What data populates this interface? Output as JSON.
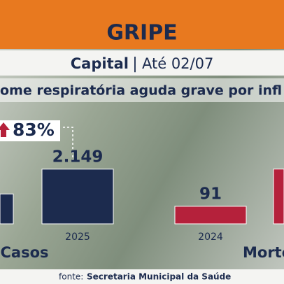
{
  "header": {
    "title": "GRIPE",
    "region": "Capital",
    "separator": "|",
    "period": "Até 02/07"
  },
  "subtitle": "ome respiratória aguda grave por infl",
  "source": {
    "prefix": "fonte:",
    "name": "Secretaria Municipal da Saúde"
  },
  "chart_data": [
    {
      "type": "bar",
      "title": "Casos",
      "annotation": "83%",
      "categories": [
        null,
        "2025"
      ],
      "values": [
        1174,
        2149
      ],
      "value_labels": [
        null,
        "2.149"
      ],
      "color": "#1c2b4e",
      "ylim": [
        0,
        2500
      ]
    },
    {
      "type": "bar",
      "title": "Morte",
      "categories": [
        "2024",
        null
      ],
      "values": [
        91,
        284
      ],
      "value_labels": [
        "91",
        null
      ],
      "color": "#b5213b",
      "ylim": [
        0,
        330
      ]
    }
  ]
}
